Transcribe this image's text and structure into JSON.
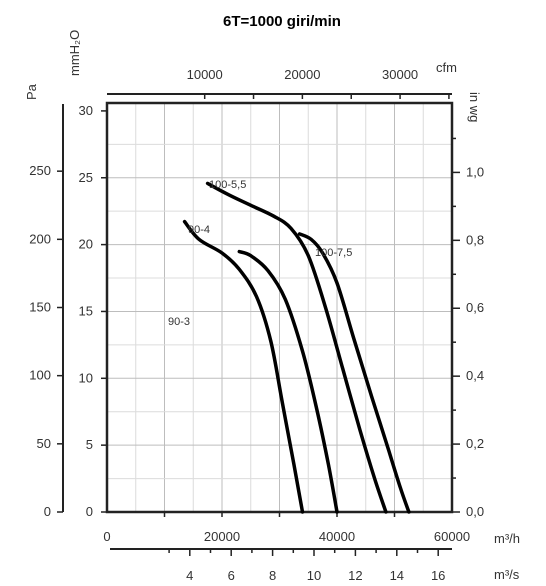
{
  "chart_data": {
    "type": "line",
    "title": "6T=1000 giri/min",
    "xlim_m3h": [
      0,
      60000
    ],
    "ylim_pa": [
      0,
      300
    ],
    "grid": true,
    "axes": {
      "bottom_m3h": {
        "unit": "m³/h",
        "ticks": [
          "0",
          "20000",
          "40000",
          "60000"
        ]
      },
      "bottom_m3s": {
        "unit": "m³/s",
        "ticks": [
          "4",
          "6",
          "8",
          "10",
          "12",
          "14",
          "16"
        ]
      },
      "top_cfm": {
        "unit": "cfm",
        "ticks": [
          "10000",
          "20000",
          "30000"
        ]
      },
      "left_pa": {
        "unit": "Pa",
        "ticks": [
          "0",
          "50",
          "100",
          "150",
          "200",
          "250"
        ]
      },
      "left_mmh2o": {
        "unit": "mmH₂O",
        "ticks": [
          "0",
          "5",
          "10",
          "15",
          "20",
          "25",
          "30"
        ]
      },
      "right_inwg": {
        "unit": "in wg",
        "ticks": [
          "0,0",
          "0,2",
          "0,4",
          "0,6",
          "0,8",
          "1,0"
        ]
      }
    },
    "series": [
      {
        "name": "90-3",
        "points": [
          [
            13500,
            213
          ],
          [
            16000,
            200
          ],
          [
            20000,
            190
          ],
          [
            23000,
            178
          ],
          [
            26000,
            158
          ],
          [
            28500,
            125
          ],
          [
            30500,
            80
          ],
          [
            32500,
            35
          ],
          [
            34000,
            0
          ]
        ]
      },
      {
        "name": "90-4",
        "points": [
          [
            23000,
            191
          ],
          [
            25000,
            188
          ],
          [
            28000,
            177
          ],
          [
            31000,
            156
          ],
          [
            34000,
            118
          ],
          [
            36500,
            75
          ],
          [
            38500,
            35
          ],
          [
            40000,
            0
          ]
        ]
      },
      {
        "name": "100-5,5",
        "points": [
          [
            17500,
            241
          ],
          [
            21000,
            233
          ],
          [
            25000,
            225
          ],
          [
            29000,
            217
          ],
          [
            32000,
            208
          ],
          [
            35000,
            188
          ],
          [
            38000,
            150
          ],
          [
            41000,
            105
          ],
          [
            44000,
            60
          ],
          [
            46500,
            25
          ],
          [
            48500,
            0
          ]
        ]
      },
      {
        "name": "100-7,5",
        "points": [
          [
            33500,
            204
          ],
          [
            35500,
            200
          ],
          [
            37500,
            190
          ],
          [
            40000,
            168
          ],
          [
            43000,
            126
          ],
          [
            46000,
            85
          ],
          [
            49000,
            45
          ],
          [
            51000,
            18
          ],
          [
            52500,
            0
          ]
        ]
      }
    ]
  }
}
